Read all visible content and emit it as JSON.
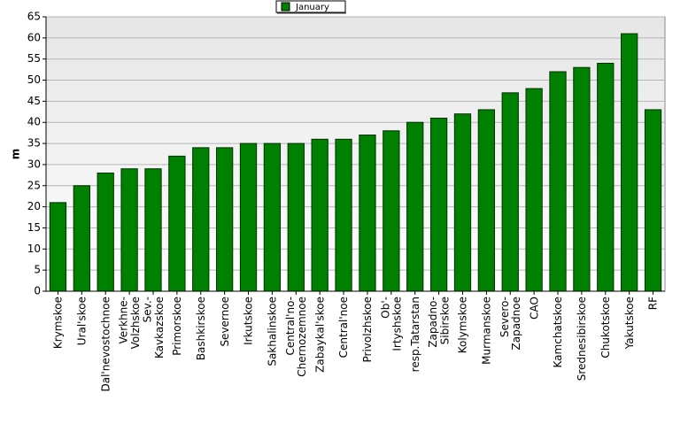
{
  "chart_data": {
    "type": "bar",
    "y_label": "m",
    "categories": [
      "Krymskoe",
      "Ural'skoe",
      "Dal'nevostochnoe",
      "Verkhne-\nVolzhskoe",
      "Sev.-\nKavkazskoe",
      "Primorskoe",
      "Bashkirskoe",
      "Severnoe",
      "Irkutskoe",
      "Sakhalinskoe",
      "Central'no-\nChernozemnoe",
      "Zabaykal'skoe",
      "Central'noe",
      "Privolzhskoe",
      "Ob'-\nIrtyshskoe",
      "resp.Tatarstan",
      "Zapadno-\nSibirskoe",
      "Kolymskoe",
      "Murmanskoe",
      "Severo-\nZapadnoe",
      "CAO",
      "Kamchatskoe",
      "Srednesibirskoe",
      "Chukotskoe",
      "Yakutskoe",
      "RF"
    ],
    "series": [
      {
        "name": "January",
        "color": "#008000",
        "values": [
          21,
          25,
          28,
          29,
          29,
          32,
          34,
          34,
          35,
          35,
          35,
          36,
          36,
          37,
          38,
          40,
          41,
          42,
          43,
          47,
          48,
          52,
          53,
          54,
          61,
          43
        ]
      }
    ],
    "ylim": [
      0,
      65
    ],
    "yticks": [
      0,
      5,
      10,
      15,
      20,
      25,
      30,
      35,
      40,
      45,
      50,
      55,
      60,
      65
    ],
    "grid": true,
    "legend": "top"
  }
}
